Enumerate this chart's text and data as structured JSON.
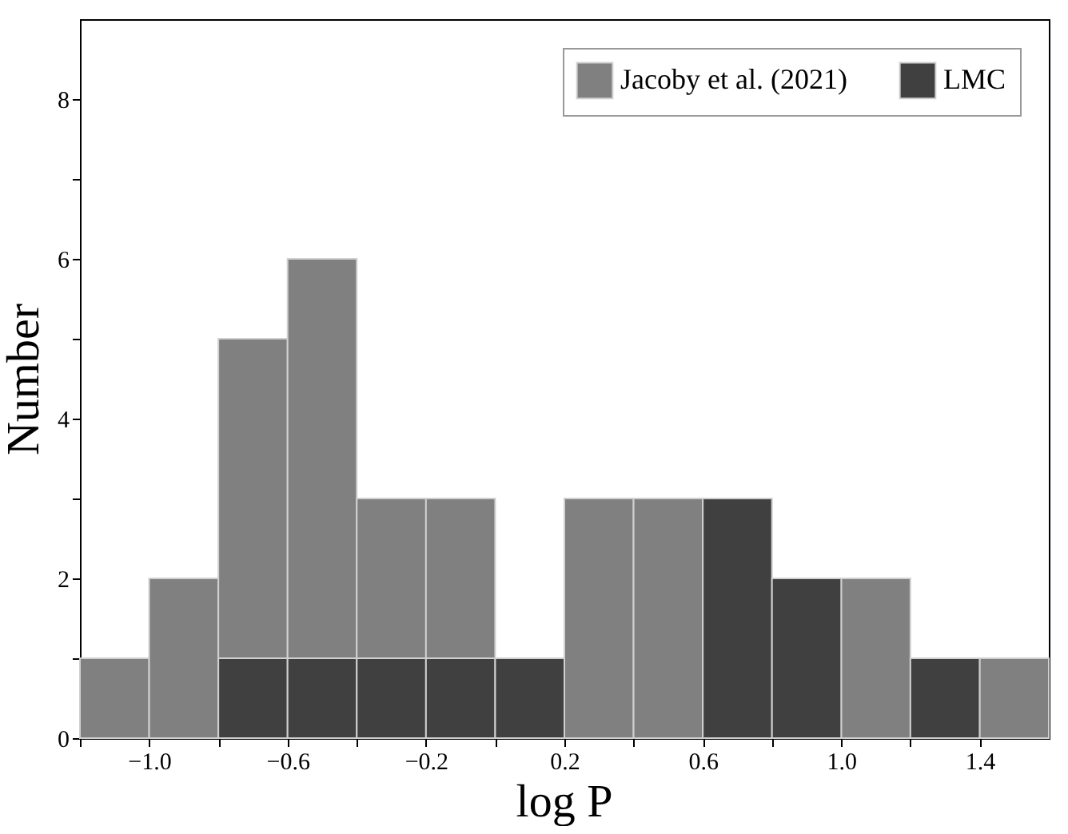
{
  "chart_data": {
    "type": "histogram",
    "xlabel": "log P",
    "ylabel": "Number",
    "bins": [
      -1.2,
      -1.0,
      -0.8,
      -0.6,
      -0.4,
      -0.2,
      0.0,
      0.2,
      0.4,
      0.6,
      0.8,
      1.0,
      1.2,
      1.4,
      1.6
    ],
    "series": [
      {
        "name": "Jacoby et al. (2021)",
        "color": "#808080",
        "values": [
          1,
          2,
          5,
          6,
          3,
          3,
          null,
          3,
          3,
          null,
          0,
          2,
          null,
          1
        ]
      },
      {
        "name": "LMC",
        "color": "#404040",
        "values": [
          0,
          0,
          1,
          1,
          1,
          1,
          1,
          0,
          0,
          3,
          2,
          0,
          1,
          0
        ]
      }
    ],
    "xlim": [
      -1.2,
      1.6
    ],
    "xticks": [
      {
        "value": -1.2,
        "label": null
      },
      {
        "value": -1.0,
        "label": "−1.0"
      },
      {
        "value": -0.8,
        "label": null
      },
      {
        "value": -0.6,
        "label": "−0.6"
      },
      {
        "value": -0.4,
        "label": null
      },
      {
        "value": -0.2,
        "label": "−0.2"
      },
      {
        "value": 0.0,
        "label": null
      },
      {
        "value": 0.2,
        "label": "0.2"
      },
      {
        "value": 0.4,
        "label": null
      },
      {
        "value": 0.6,
        "label": "0.6"
      },
      {
        "value": 0.8,
        "label": null
      },
      {
        "value": 1.0,
        "label": "1.0"
      },
      {
        "value": 1.2,
        "label": null
      },
      {
        "value": 1.4,
        "label": "1.4"
      }
    ],
    "ylim": [
      0,
      9
    ],
    "yticks": [
      0,
      {
        "value": 1,
        "label": null
      },
      2,
      {
        "value": 3,
        "label": null
      },
      4,
      {
        "value": 5,
        "label": null
      },
      6,
      {
        "value": 7,
        "label": null
      },
      8
    ],
    "legend": "top right"
  }
}
